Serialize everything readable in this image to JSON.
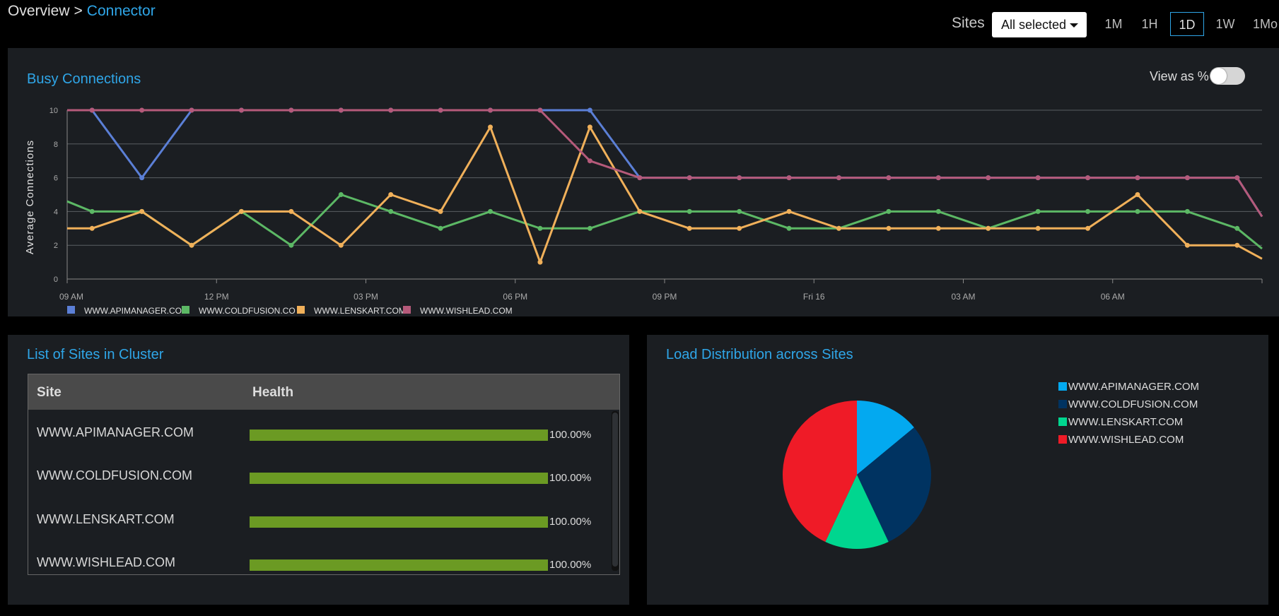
{
  "breadcrumb": {
    "root": "Overview",
    "separator": ">",
    "current": "Connector"
  },
  "filters": {
    "sites_label": "Sites",
    "sites_value": "All selected",
    "ranges": [
      "1M",
      "1H",
      "1D",
      "1W",
      "1Mo"
    ],
    "active_range": "1D"
  },
  "busy": {
    "title": "Busy Connections",
    "view_pct_label": "View as %",
    "view_pct_on": false
  },
  "colors": {
    "accent": "#2fa6e8",
    "health_bar": "#6b9a23",
    "api_line": "#5b7fd6",
    "cold_line": "#5cb865",
    "lens_line": "#f0b05a",
    "wish_line": "#b55a7a",
    "api_pie": "#03a9f0",
    "cold_pie": "#003361",
    "lens_pie": "#00d68f",
    "wish_pie": "#ef1b27"
  },
  "chart_data": [
    {
      "type": "line",
      "title": "Busy Connections",
      "xlabel": "",
      "ylabel": "Average Connections",
      "ylim": [
        0,
        10
      ],
      "yticks": [
        0,
        2,
        4,
        6,
        8,
        10
      ],
      "xticks": [
        "09 AM",
        "12 PM",
        "03 PM",
        "06 PM",
        "09 PM",
        "Fri 16",
        "03 AM",
        "06 AM"
      ],
      "x_hours": [
        9,
        9.5,
        10.5,
        11.5,
        12.5,
        13.5,
        14.5,
        15.5,
        16.5,
        17.5,
        18.5,
        19.5,
        20.5,
        21.5,
        22.5,
        23.5,
        24.5,
        25.5,
        26.5,
        27.5,
        28.5,
        29.5,
        30.5,
        31.5,
        32.5,
        33
      ],
      "series": [
        {
          "name": "WWW.APIMANAGER.COM",
          "legend": "WWW.APIMANAGER.CO",
          "color": "#5b7fd6",
          "values": [
            10,
            10,
            6,
            10,
            10,
            10,
            10,
            10,
            10,
            10,
            10,
            10,
            6,
            6,
            6,
            6,
            6,
            6,
            6,
            6,
            6,
            6,
            6,
            6,
            6,
            3.7
          ]
        },
        {
          "name": "WWW.COLDFUSION.COM",
          "legend": "WWW.COLDFUSION.CO",
          "color": "#5cb865",
          "values": [
            4.6,
            4,
            4,
            2,
            4,
            2,
            5,
            4,
            3,
            4,
            3,
            3,
            4,
            4,
            4,
            3,
            3,
            4,
            4,
            3,
            4,
            4,
            4,
            4,
            3,
            1.8
          ]
        },
        {
          "name": "WWW.LENSKART.COM",
          "legend": "WWW.LENSKART.COM",
          "color": "#f0b05a",
          "values": [
            3,
            3,
            4,
            2,
            4,
            4,
            2,
            5,
            4,
            9,
            1,
            9,
            4,
            3,
            3,
            4,
            3,
            3,
            3,
            3,
            3,
            3,
            5,
            2,
            2,
            1.2
          ]
        },
        {
          "name": "WWW.WISHLEAD.COM",
          "legend": "WWW.WISHLEAD.COM",
          "color": "#b55a7a",
          "values": [
            10,
            10,
            10,
            10,
            10,
            10,
            10,
            10,
            10,
            10,
            10,
            7,
            6,
            6,
            6,
            6,
            6,
            6,
            6,
            6,
            6,
            6,
            6,
            6,
            6,
            3.7
          ]
        }
      ]
    },
    {
      "type": "pie",
      "title": "Load Distribution across Sites",
      "labels": [
        "WWW.APIMANAGER.COM",
        "WWW.COLDFUSION.COM",
        "WWW.LENSKART.COM",
        "WWW.WISHLEAD.COM"
      ],
      "values": [
        14,
        29,
        14,
        43
      ],
      "colors": [
        "#03a9f0",
        "#003361",
        "#00d68f",
        "#ef1b27"
      ]
    }
  ],
  "sites_list": {
    "title": "List of Sites in Cluster",
    "columns": [
      "Site",
      "Health"
    ],
    "rows": [
      {
        "site": "WWW.APIMANAGER.COM",
        "health": 100,
        "health_label": "100.00%"
      },
      {
        "site": "WWW.COLDFUSION.COM",
        "health": 100,
        "health_label": "100.00%"
      },
      {
        "site": "WWW.LENSKART.COM",
        "health": 100,
        "health_label": "100.00%"
      },
      {
        "site": "WWW.WISHLEAD.COM",
        "health": 100,
        "health_label": "100.00%"
      }
    ]
  },
  "load": {
    "title": "Load Distribution across Sites"
  }
}
